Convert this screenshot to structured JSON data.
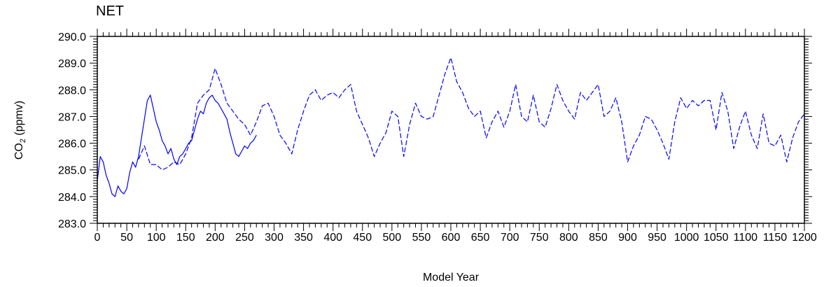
{
  "chart_data": {
    "type": "line",
    "title": "NET",
    "xlabel": "Model Year",
    "ylabel": "CO2 (ppmv)",
    "ylabel_main": "CO",
    "ylabel_sub": "2",
    "ylabel_unit": " (ppmv)",
    "xlim": [
      0,
      1200
    ],
    "ylim": [
      283.0,
      290.0
    ],
    "x_ticks": [
      0,
      50,
      100,
      150,
      200,
      250,
      300,
      350,
      400,
      450,
      500,
      550,
      600,
      650,
      700,
      750,
      800,
      850,
      900,
      950,
      1000,
      1050,
      1100,
      1150,
      1200
    ],
    "x_tick_labels": [
      "0",
      "50",
      "100",
      "150",
      "200",
      "250",
      "300",
      "350",
      "400",
      "450",
      "500",
      "550",
      "600",
      "650",
      "700",
      "750",
      "800",
      "850",
      "900",
      "950",
      "1000",
      "1050",
      "1100",
      "1150",
      "1200"
    ],
    "y_ticks": [
      283,
      284,
      285,
      286,
      287,
      288,
      289,
      290
    ],
    "y_tick_labels": [
      "283.0",
      "284.0",
      "285.0",
      "286.0",
      "287.0",
      "288.0",
      "289.0",
      "290.0"
    ],
    "grid": false,
    "line_color": "#0000ff",
    "series": [
      {
        "style": "solid",
        "x": [
          0,
          5,
          10,
          15,
          20,
          25,
          30,
          35,
          40,
          45,
          50,
          55,
          60,
          65,
          70,
          75,
          80,
          85,
          90,
          95,
          100,
          105,
          110,
          115,
          120,
          125,
          130,
          135,
          140,
          145,
          150,
          155,
          160,
          165,
          170,
          175,
          180,
          185,
          190,
          195,
          200,
          205,
          210,
          215,
          220,
          225,
          230,
          235,
          240,
          245,
          250,
          255,
          260,
          265,
          270
        ],
        "y": [
          284.6,
          285.5,
          285.3,
          284.8,
          284.5,
          284.1,
          284.0,
          284.4,
          284.2,
          284.1,
          284.3,
          284.9,
          285.3,
          285.1,
          285.5,
          286.2,
          286.9,
          287.6,
          287.8,
          287.3,
          286.8,
          286.5,
          286.1,
          285.9,
          285.6,
          285.8,
          285.4,
          285.2,
          285.5,
          285.6,
          285.8,
          286.0,
          286.1,
          286.5,
          286.9,
          287.2,
          287.1,
          287.5,
          287.7,
          287.8,
          287.6,
          287.5,
          287.3,
          287.1,
          286.9,
          286.4,
          286.0,
          285.6,
          285.5,
          285.7,
          285.9,
          285.8,
          286.0,
          286.1,
          286.3
        ]
      },
      {
        "style": "dashed",
        "x": [
          70,
          80,
          90,
          100,
          110,
          120,
          130,
          140,
          150,
          160,
          170,
          180,
          190,
          200,
          205,
          210,
          220,
          230,
          240,
          250,
          260,
          270,
          280,
          290,
          300,
          310,
          320,
          330,
          340,
          350,
          360,
          370,
          380,
          390,
          400,
          410,
          420,
          430,
          440,
          450,
          460,
          470,
          480,
          490,
          500,
          510,
          520,
          530,
          540,
          550,
          560,
          570,
          580,
          590,
          600,
          610,
          620,
          630,
          640,
          650,
          660,
          670,
          680,
          690,
          700,
          710,
          720,
          730,
          740,
          750,
          760,
          770,
          780,
          790,
          800,
          810,
          820,
          830,
          840,
          850,
          860,
          870,
          880,
          890,
          900,
          910,
          920,
          930,
          940,
          950,
          960,
          970,
          980,
          990,
          1000,
          1010,
          1020,
          1030,
          1040,
          1050,
          1060,
          1070,
          1080,
          1090,
          1100,
          1110,
          1120,
          1130,
          1140,
          1150,
          1160,
          1170,
          1180,
          1190,
          1200
        ],
        "y": [
          285.4,
          285.9,
          285.2,
          285.2,
          285.0,
          285.1,
          285.3,
          285.2,
          285.6,
          286.2,
          287.5,
          287.8,
          288.0,
          288.8,
          288.5,
          288.2,
          287.5,
          287.2,
          286.9,
          286.7,
          286.3,
          286.8,
          287.4,
          287.5,
          287.0,
          286.3,
          286.0,
          285.6,
          286.5,
          287.2,
          287.8,
          288.0,
          287.6,
          287.8,
          287.9,
          287.7,
          288.0,
          288.2,
          287.2,
          286.7,
          286.2,
          285.5,
          286.0,
          286.4,
          287.2,
          287.0,
          285.5,
          286.7,
          287.5,
          287.0,
          286.9,
          287.0,
          287.8,
          288.6,
          289.2,
          288.3,
          287.9,
          287.3,
          287.0,
          287.2,
          286.2,
          286.8,
          287.2,
          286.6,
          287.2,
          288.2,
          287.0,
          286.8,
          287.8,
          286.8,
          286.6,
          287.3,
          288.2,
          287.6,
          287.2,
          286.9,
          287.9,
          287.6,
          287.9,
          288.2,
          287.0,
          287.2,
          287.7,
          286.8,
          285.3,
          285.9,
          286.3,
          287.0,
          286.9,
          286.5,
          286.0,
          285.4,
          286.8,
          287.7,
          287.3,
          287.6,
          287.4,
          287.6,
          287.6,
          286.5,
          287.9,
          287.2,
          285.8,
          286.6,
          287.2,
          286.3,
          285.8,
          287.1,
          286.0,
          285.9,
          286.3,
          285.3,
          286.2,
          286.8,
          287.1
        ]
      }
    ]
  }
}
